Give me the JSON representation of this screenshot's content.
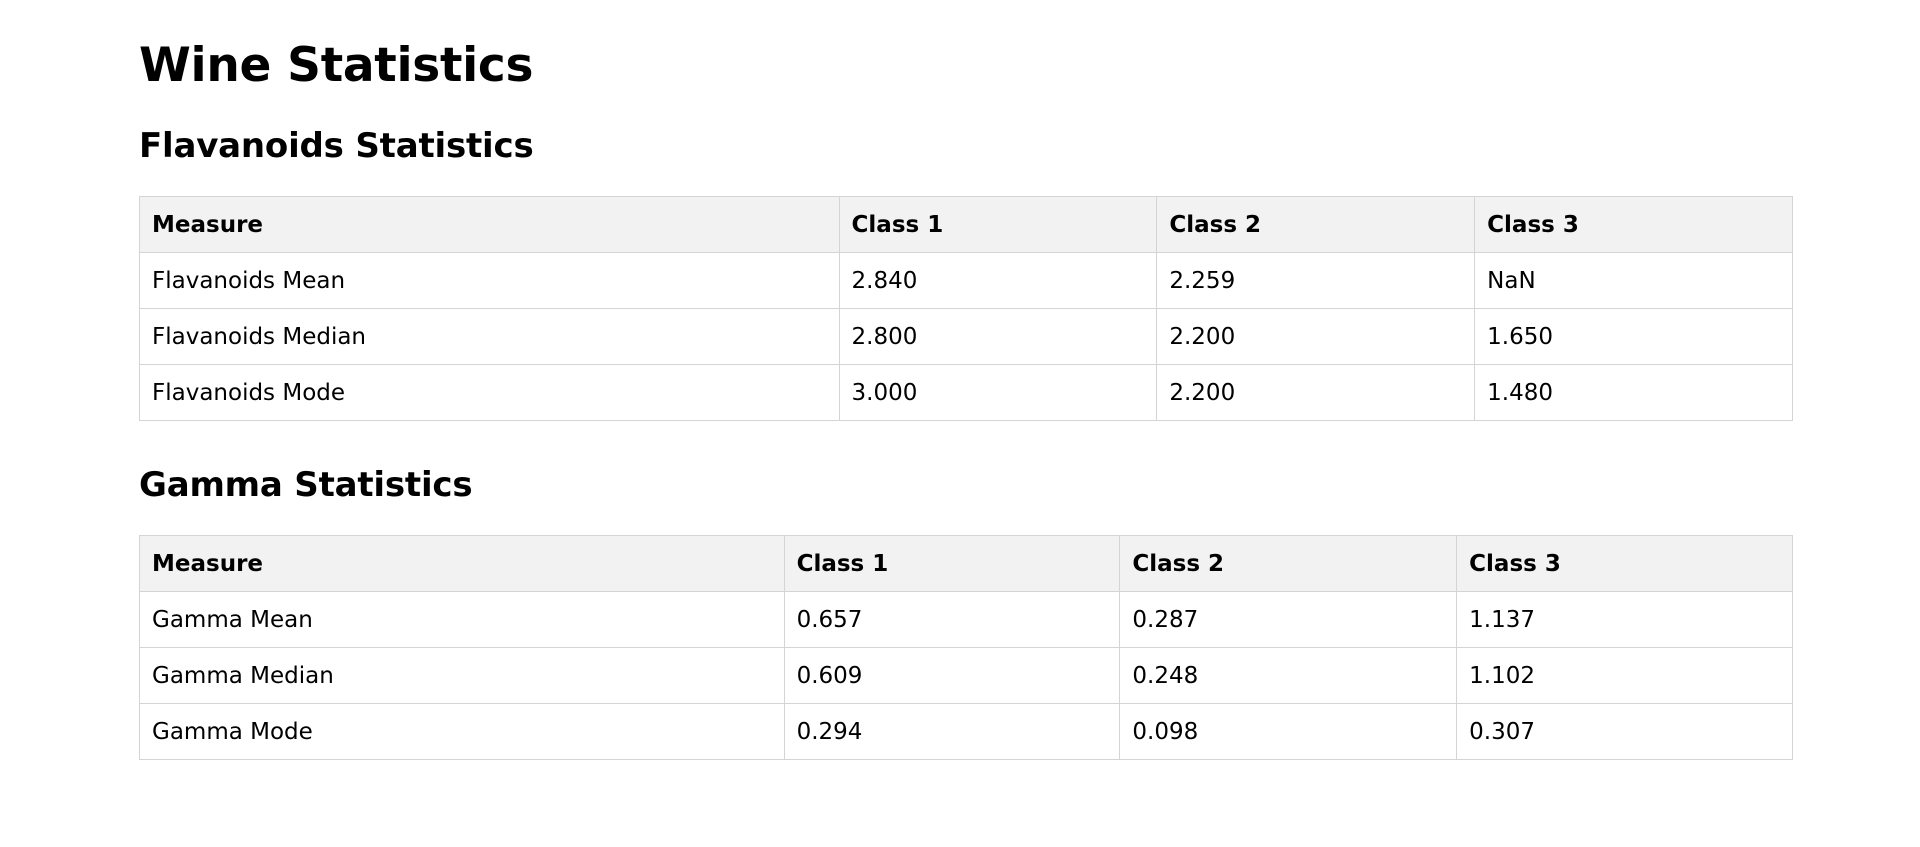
{
  "page": {
    "title": "Wine Statistics"
  },
  "flavanoids": {
    "heading": "Flavanoids Statistics",
    "columns": [
      "Measure",
      "Class 1",
      "Class 2",
      "Class 3"
    ],
    "rows": [
      [
        "Flavanoids Mean",
        "2.840",
        "2.259",
        "NaN"
      ],
      [
        "Flavanoids Median",
        "2.800",
        "2.200",
        "1.650"
      ],
      [
        "Flavanoids Mode",
        "3.000",
        "2.200",
        "1.480"
      ]
    ]
  },
  "gamma": {
    "heading": "Gamma Statistics",
    "columns": [
      "Measure",
      "Class 1",
      "Class 2",
      "Class 3"
    ],
    "rows": [
      [
        "Gamma Mean",
        "0.657",
        "0.287",
        "1.137"
      ],
      [
        "Gamma Median",
        "0.609",
        "0.248",
        "1.102"
      ],
      [
        "Gamma Mode",
        "0.294",
        "0.098",
        "0.307"
      ]
    ]
  }
}
